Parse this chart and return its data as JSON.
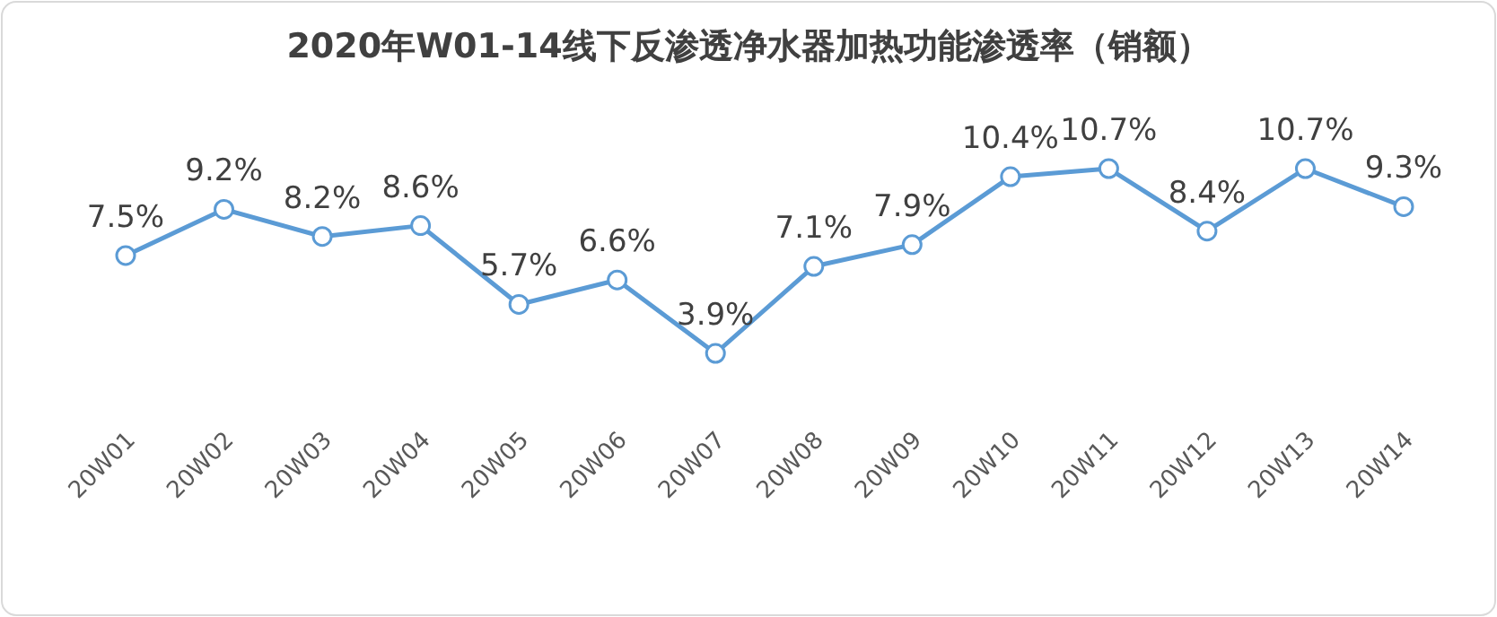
{
  "chart_data": {
    "type": "line",
    "title": "2020年W01-14线下反渗透净水器加热功能渗透率（销额）",
    "categories": [
      "20W01",
      "20W02",
      "20W03",
      "20W04",
      "20W05",
      "20W06",
      "20W07",
      "20W08",
      "20W09",
      "20W10",
      "20W11",
      "20W12",
      "20W13",
      "20W14"
    ],
    "series": [
      {
        "color": "#5b9bd5",
        "values": [
          7.5,
          9.2,
          8.2,
          8.6,
          5.7,
          6.6,
          3.9,
          7.1,
          7.9,
          10.4,
          10.7,
          8.4,
          10.7,
          9.3
        ],
        "value_labels": [
          "7.5%",
          "9.2%",
          "8.2%",
          "8.6%",
          "5.7%",
          "6.6%",
          "3.9%",
          "7.1%",
          "7.9%",
          "10.4%",
          "10.7%",
          "8.4%",
          "10.7%",
          "9.3%"
        ]
      }
    ],
    "marker": "circle"
  }
}
